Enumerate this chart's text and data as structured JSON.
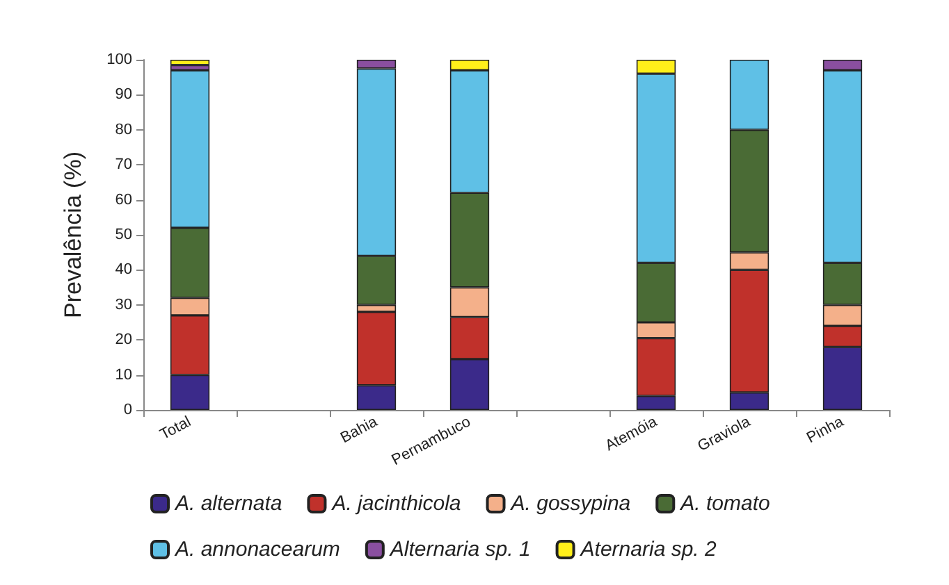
{
  "chart_data": {
    "type": "bar",
    "stacked": true,
    "ylabel": "Prevalência (%)",
    "categories": [
      "Total",
      null,
      "Bahia",
      "Pernambuco",
      null,
      "Atemóia",
      "Graviola",
      "Pinha"
    ],
    "series": [
      {
        "name": "A. alternata",
        "color": "#3b2a8a",
        "values": [
          10,
          null,
          7,
          14.5,
          null,
          4,
          5,
          18
        ]
      },
      {
        "name": "A. jacinthicola",
        "color": "#c0312b",
        "values": [
          17,
          null,
          21,
          12,
          null,
          16.5,
          35,
          6
        ]
      },
      {
        "name": "A. gossypina",
        "color": "#f4b08a",
        "values": [
          5,
          null,
          2,
          8.5,
          null,
          4.5,
          5,
          6
        ]
      },
      {
        "name": "A. tomato",
        "color": "#4a6b35",
        "values": [
          20,
          null,
          14,
          27,
          null,
          17,
          35,
          12
        ]
      },
      {
        "name": "A. annonacearum",
        "color": "#5fc0e6",
        "values": [
          45,
          null,
          53.5,
          35,
          null,
          54,
          20,
          55
        ]
      },
      {
        "name": "Alternaria sp. 1",
        "color": "#8a4fa0",
        "values": [
          1.5,
          null,
          2.5,
          0,
          null,
          0,
          0,
          3
        ]
      },
      {
        "name": "Aternaria sp. 2",
        "color": "#ffef1a",
        "values": [
          1.5,
          null,
          0,
          3,
          null,
          4,
          0,
          0
        ]
      }
    ],
    "ylim": [
      0,
      100
    ],
    "yticks": [
      0,
      10,
      20,
      30,
      40,
      50,
      60,
      70,
      80,
      90,
      100
    ],
    "grid": false,
    "legend": "bottom"
  }
}
